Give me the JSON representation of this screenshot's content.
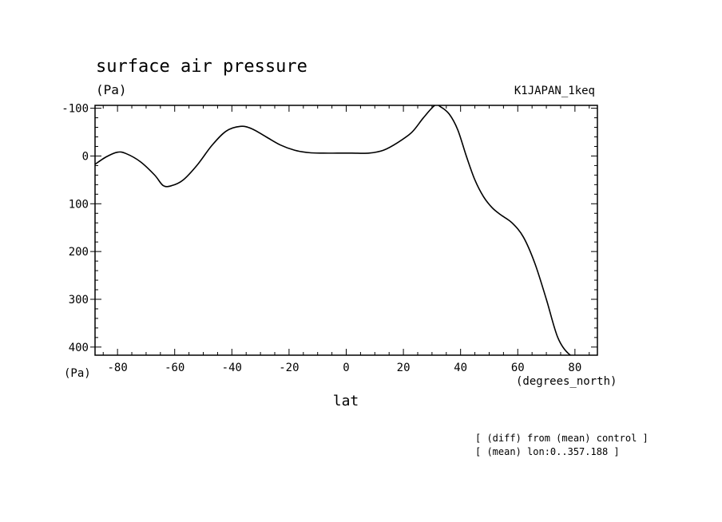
{
  "chart_data": {
    "type": "line",
    "title": "surface air pressure",
    "y_unit": "(Pa)",
    "y_unit_bottom": "(Pa)",
    "run_label": "K1JAPAN_1keq",
    "xlabel": "lat",
    "x_unit": "(degrees_north)",
    "notes": [
      "[ (diff) from (mean) control ]",
      "[ (mean) lon:0..357.188 ]"
    ],
    "xlim": [
      -87.86,
      87.86
    ],
    "ylim": [
      -106,
      417
    ],
    "y_inverted": true,
    "xticks": [
      -80,
      -60,
      -40,
      -20,
      0,
      20,
      40,
      60,
      80
    ],
    "xtick_labels": [
      "-80",
      "-60",
      "-40",
      "-20",
      "0",
      "20",
      "40",
      "60",
      "80"
    ],
    "yticks": [
      -100,
      0,
      100,
      200,
      300,
      400
    ],
    "ytick_labels": [
      "-100",
      "0",
      "100",
      "200",
      "300",
      "400"
    ],
    "line_color": "#000000",
    "series": [
      {
        "x": [
          -88,
          -84,
          -80,
          -77,
          -72,
          -67,
          -64,
          -61,
          -57,
          -52,
          -47,
          -42,
          -37,
          -33,
          -28,
          -23,
          -18,
          -13,
          -8,
          -3,
          2,
          8,
          13,
          18,
          23,
          27,
          31,
          33,
          36,
          39,
          42,
          45,
          48,
          51,
          54,
          58,
          62,
          66,
          70,
          74,
          78,
          82,
          85,
          88
        ],
        "y": [
          18,
          2,
          -8,
          -5,
          12,
          40,
          62,
          62,
          50,
          18,
          -22,
          -52,
          -62,
          -57,
          -40,
          -23,
          -12,
          -7,
          -6,
          -6,
          -6,
          -6,
          -12,
          -28,
          -50,
          -80,
          -106,
          -103,
          -88,
          -55,
          0,
          50,
          85,
          108,
          123,
          140,
          170,
          225,
          300,
          380,
          415,
          420,
          420,
          417
        ]
      }
    ]
  }
}
